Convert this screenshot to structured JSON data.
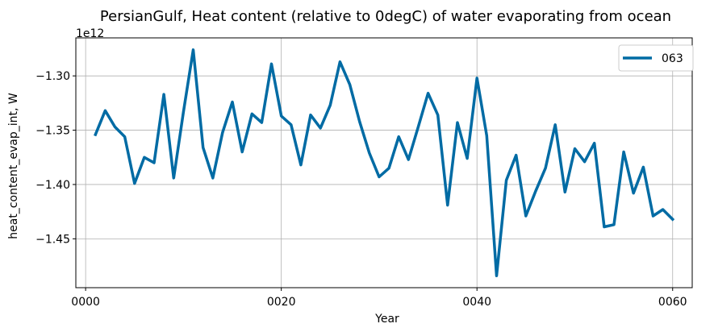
{
  "chart_data": {
    "type": "line",
    "title": "PersianGulf, Heat content (relative to 0degC) of water evaporating from ocean",
    "xlabel": "Year",
    "ylabel": "heat_content_evap_int, W",
    "y_offset_label": "1e12",
    "xlim": [
      -1,
      62
    ],
    "ylim": [
      -1.495,
      -1.265
    ],
    "x_ticks": [
      {
        "value": 0,
        "label": "0000"
      },
      {
        "value": 20,
        "label": "0020"
      },
      {
        "value": 40,
        "label": "0040"
      },
      {
        "value": 60,
        "label": "0060"
      }
    ],
    "y_ticks": [
      {
        "value": -1.3,
        "label": "−1.30"
      },
      {
        "value": -1.35,
        "label": "−1.35"
      },
      {
        "value": -1.4,
        "label": "−1.40"
      },
      {
        "value": -1.45,
        "label": "−1.45"
      }
    ],
    "grid": true,
    "legend_position": "top-right",
    "series": [
      {
        "name": "063",
        "color": "#006ba4",
        "x": [
          1,
          2,
          3,
          4,
          5,
          6,
          7,
          8,
          9,
          10,
          11,
          12,
          13,
          14,
          15,
          16,
          17,
          18,
          19,
          20,
          21,
          22,
          23,
          24,
          25,
          26,
          27,
          28,
          29,
          30,
          31,
          32,
          33,
          34,
          35,
          36,
          37,
          38,
          39,
          40,
          41,
          42,
          43,
          44,
          45,
          46,
          47,
          48,
          49,
          50,
          51,
          52,
          53,
          54,
          55,
          56,
          57,
          58,
          59,
          60
        ],
        "y": [
          -1.354,
          -1.332,
          -1.347,
          -1.356,
          -1.399,
          -1.375,
          -1.38,
          -1.317,
          -1.394,
          -1.333,
          -1.276,
          -1.366,
          -1.394,
          -1.352,
          -1.324,
          -1.37,
          -1.335,
          -1.343,
          -1.289,
          -1.337,
          -1.345,
          -1.382,
          -1.336,
          -1.348,
          -1.327,
          -1.287,
          -1.308,
          -1.342,
          -1.371,
          -1.393,
          -1.385,
          -1.356,
          -1.377,
          -1.347,
          -1.316,
          -1.336,
          -1.419,
          -1.343,
          -1.376,
          -1.302,
          -1.355,
          -1.484,
          -1.396,
          -1.373,
          -1.429,
          -1.406,
          -1.385,
          -1.345,
          -1.407,
          -1.367,
          -1.379,
          -1.362,
          -1.439,
          -1.437,
          -1.37,
          -1.408,
          -1.384,
          -1.429,
          -1.423,
          -1.432
        ]
      }
    ]
  }
}
